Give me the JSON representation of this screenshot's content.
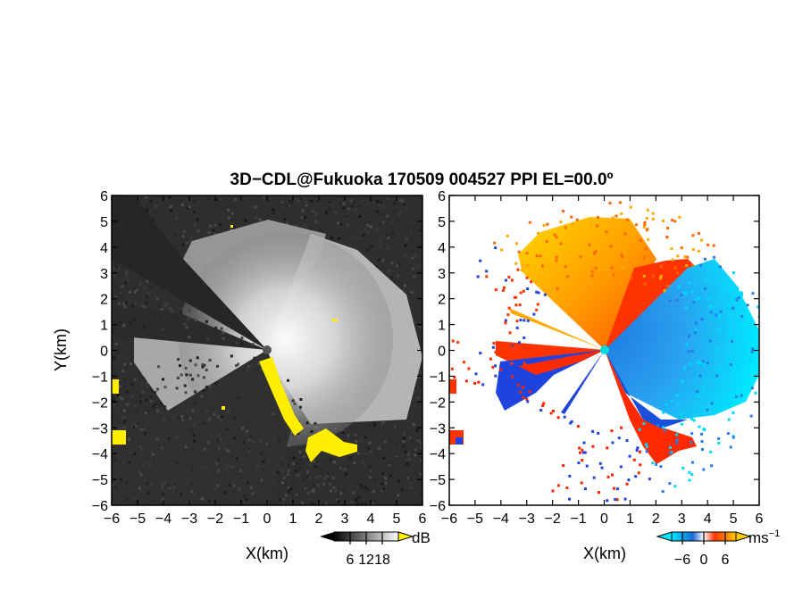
{
  "title": "3D−CDL@Fukuoka 170509 004527 PPI EL=00.0º",
  "chart_data": [
    {
      "type": "heatmap",
      "panel": "snr",
      "xlabel": "X(km)",
      "ylabel": "Y(km)",
      "xlim": [
        -6,
        6
      ],
      "ylim": [
        -6,
        6
      ],
      "xticks": [
        "−6",
        "−5",
        "−4",
        "−3",
        "−2",
        "−1",
        "0",
        "1",
        "2",
        "3",
        "4",
        "5",
        "6"
      ],
      "yticks": [
        "6",
        "5",
        "4",
        "3",
        "2",
        "1",
        "0",
        "−1",
        "−2",
        "−3",
        "−4",
        "−5",
        "−6"
      ],
      "colorbar": {
        "unit": "dB",
        "ticks": [
          "6",
          "12",
          "18"
        ],
        "range": [
          0,
          24
        ]
      },
      "colors": {
        "low": "#000000",
        "high": "#ffffff",
        "overflow": "#ffee00"
      }
    },
    {
      "type": "heatmap",
      "panel": "doppler-velocity",
      "xlabel": "X(km)",
      "xlim": [
        -6,
        6
      ],
      "ylim": [
        -6,
        6
      ],
      "xticks": [
        "−6",
        "−5",
        "−4",
        "−3",
        "−2",
        "−1",
        "0",
        "1",
        "2",
        "3",
        "4",
        "5",
        "6"
      ],
      "yticks": [
        "6",
        "5",
        "4",
        "3",
        "2",
        "1",
        "0",
        "−1",
        "−2",
        "−3",
        "−4",
        "−5",
        "−6"
      ],
      "colorbar": {
        "unit": "ms",
        "unit_exp": "−1",
        "ticks": [
          "−6",
          "0",
          "6"
        ],
        "range": [
          -9,
          9
        ]
      },
      "colors": {
        "approach_fast": "#00e5ff",
        "approach": "#0033dd",
        "recede": "#ff2200",
        "recede_fast": "#ffcc00",
        "radar": "#00dddd"
      }
    }
  ]
}
